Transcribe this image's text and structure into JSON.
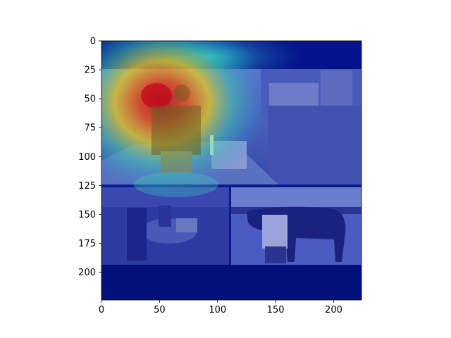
{
  "chart_data": {
    "type": "heatmap",
    "title": "",
    "xlabel": "",
    "ylabel": "",
    "xlim": [
      0,
      224
    ],
    "ylim": [
      224,
      0
    ],
    "x_ticks": [
      0,
      50,
      100,
      150,
      200
    ],
    "y_ticks": [
      0,
      25,
      50,
      75,
      100,
      125,
      150,
      175,
      200
    ],
    "x_tick_labels": [
      "0",
      "50",
      "100",
      "150",
      "200"
    ],
    "y_tick_labels": [
      "0",
      "25",
      "50",
      "75",
      "100",
      "125",
      "150",
      "175",
      "200"
    ],
    "colormap": "jet",
    "overlay": "activation heatmap over photo collage",
    "panels": [
      {
        "name": "top-panel",
        "x0": 0,
        "x1": 224,
        "y0": 24,
        "y1": 124
      },
      {
        "name": "bottom-left-panel",
        "x0": 0,
        "x1": 110,
        "y0": 126,
        "y1": 193
      },
      {
        "name": "bottom-right-panel",
        "x0": 112,
        "x1": 224,
        "y0": 126,
        "y1": 193
      }
    ],
    "activation_peak": {
      "x": 48,
      "y": 45,
      "intensity": 1.0
    },
    "colors": {
      "background": "#0a1a8a",
      "band_dark": "#03107a",
      "panel_blue": "#3a4cc0",
      "water": "#4658b4",
      "peak_red": "#d6141a"
    }
  }
}
